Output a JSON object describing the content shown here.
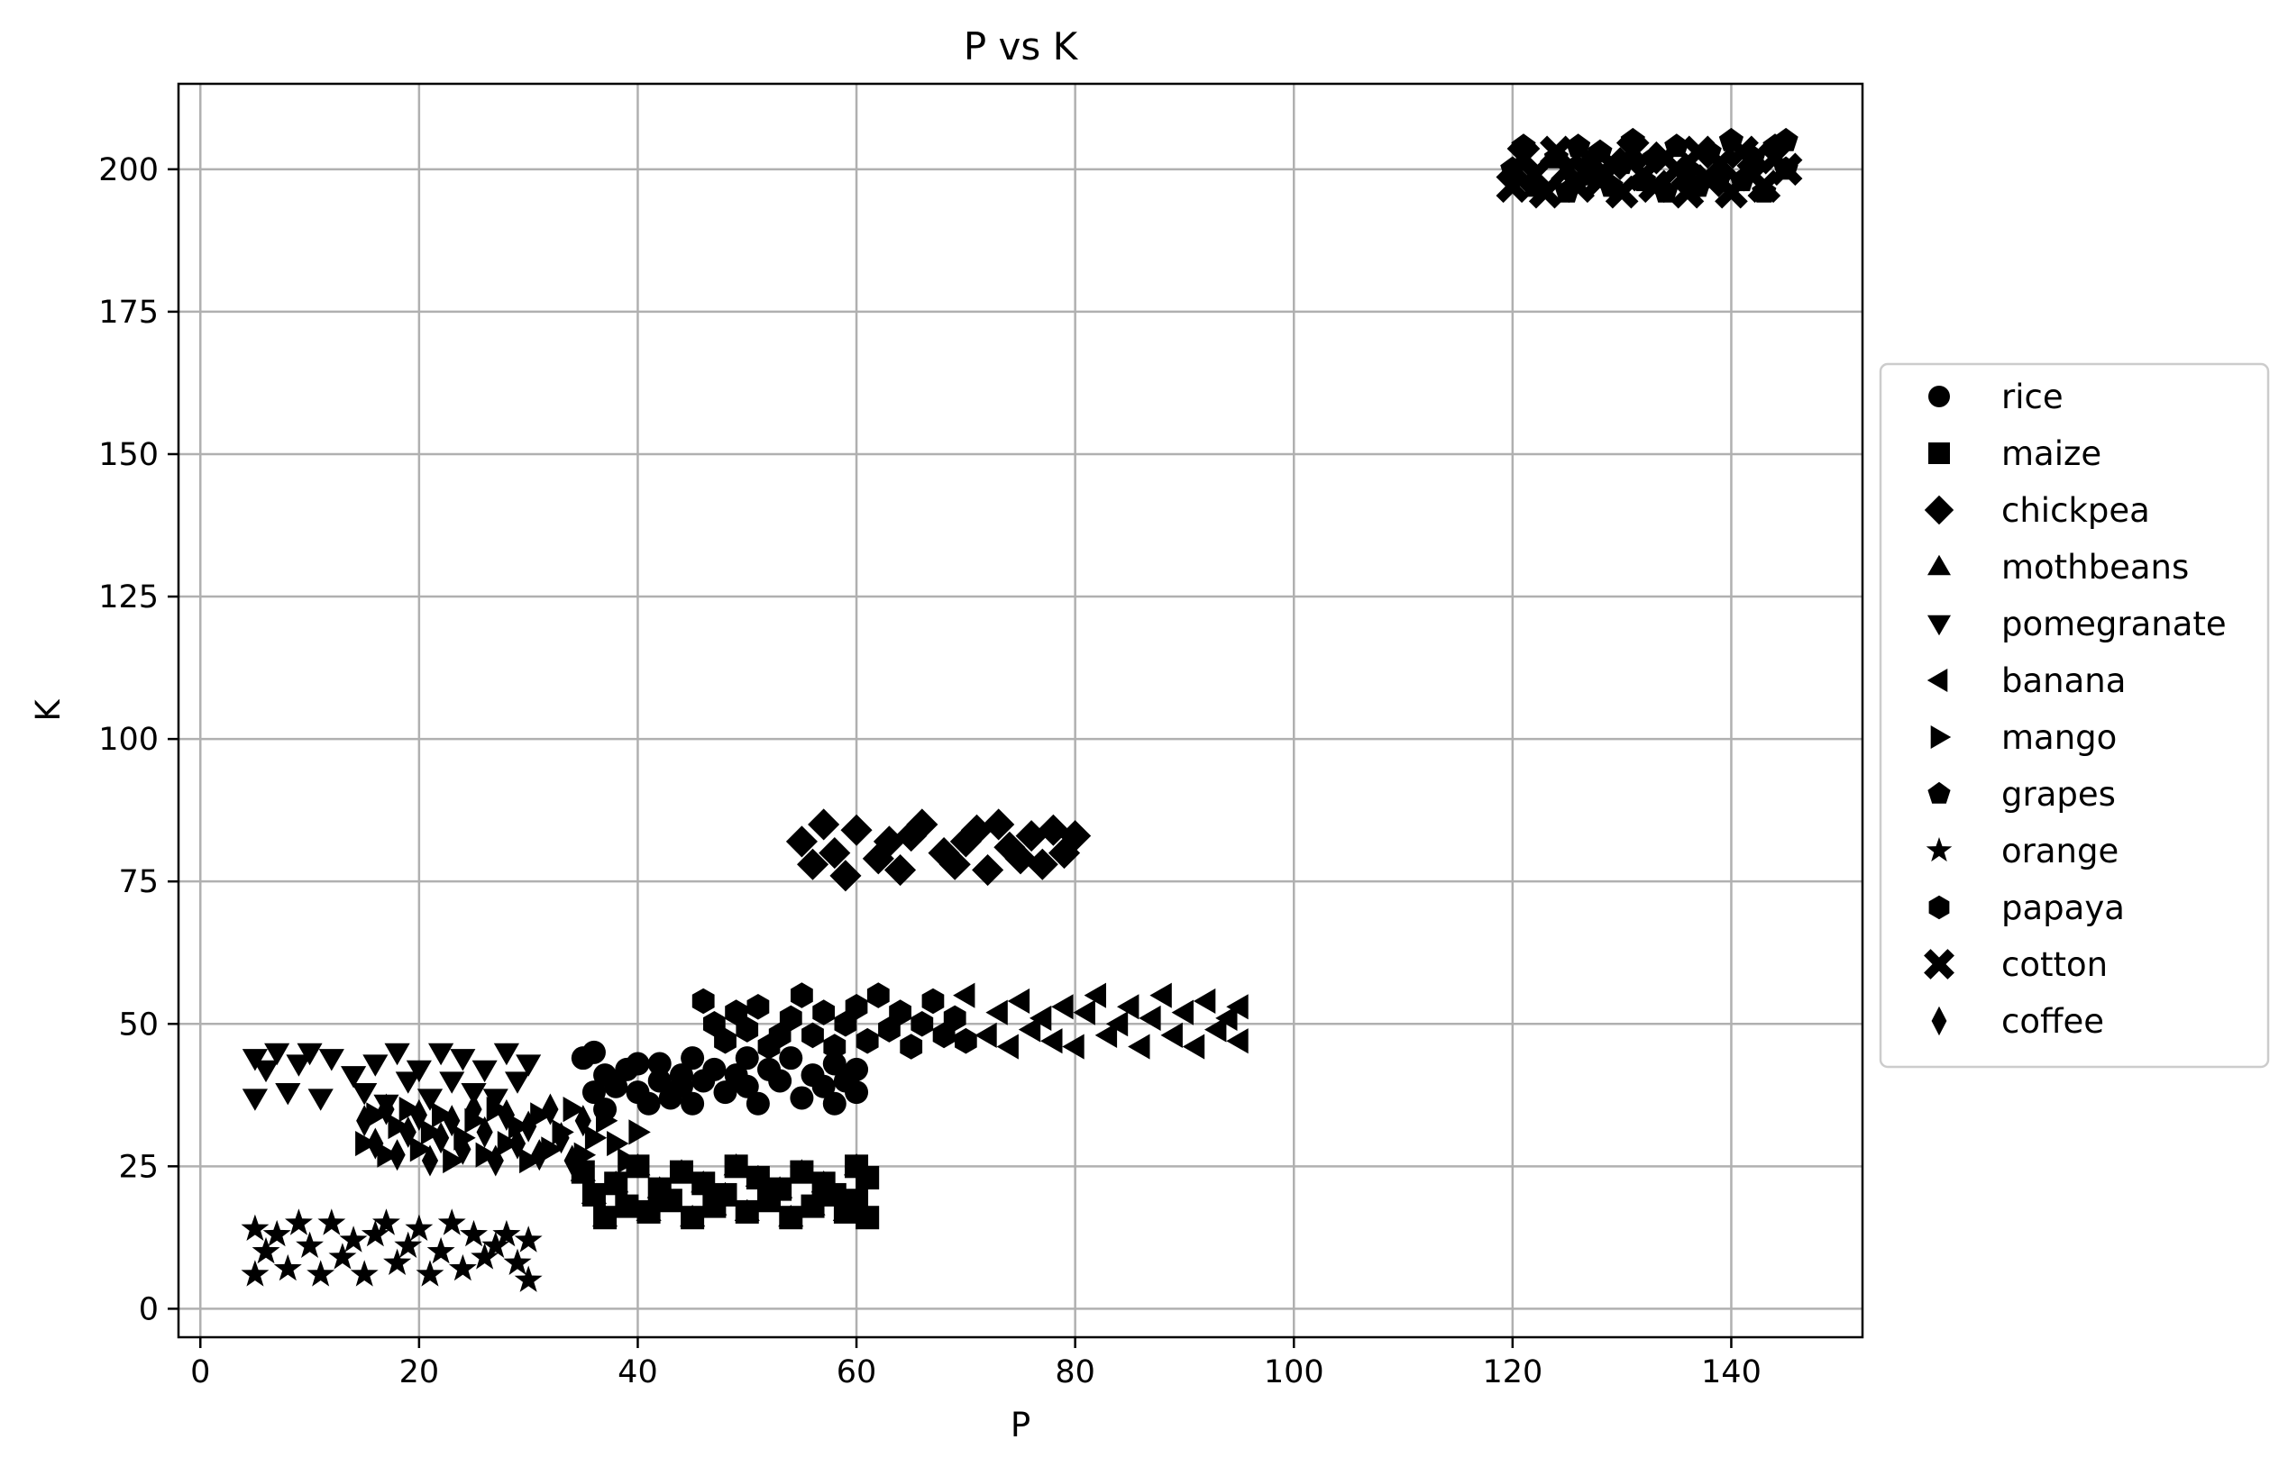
{
  "chart_data": {
    "type": "scatter",
    "title": "P vs K",
    "xlabel": "P",
    "ylabel": "K",
    "xlim": [
      -2,
      152
    ],
    "ylim": [
      -5,
      215
    ],
    "xticks": [
      0,
      20,
      40,
      60,
      80,
      100,
      120,
      140
    ],
    "yticks": [
      0,
      25,
      50,
      75,
      100,
      125,
      150,
      175,
      200
    ],
    "grid": true,
    "legend": "center-right-outside",
    "marker_color": "#000000",
    "series": [
      {
        "name": "rice",
        "marker": "circle",
        "points": [
          [
            35,
            44
          ],
          [
            36,
            45
          ],
          [
            37,
            41
          ],
          [
            36,
            38
          ],
          [
            37,
            35
          ],
          [
            38,
            39
          ],
          [
            39,
            42
          ],
          [
            40,
            43
          ],
          [
            40,
            38
          ],
          [
            41,
            36
          ],
          [
            42,
            40
          ],
          [
            42,
            43
          ],
          [
            43,
            37
          ],
          [
            44,
            41
          ],
          [
            44,
            39
          ],
          [
            45,
            44
          ],
          [
            45,
            36
          ],
          [
            46,
            40
          ],
          [
            47,
            42
          ],
          [
            48,
            38
          ],
          [
            49,
            41
          ],
          [
            50,
            44
          ],
          [
            50,
            39
          ],
          [
            51,
            36
          ],
          [
            52,
            42
          ],
          [
            53,
            40
          ],
          [
            54,
            44
          ],
          [
            55,
            37
          ],
          [
            56,
            41
          ],
          [
            57,
            39
          ],
          [
            58,
            43
          ],
          [
            58,
            36
          ],
          [
            59,
            40
          ],
          [
            60,
            38
          ],
          [
            60,
            42
          ]
        ]
      },
      {
        "name": "maize",
        "marker": "square",
        "points": [
          [
            35,
            24
          ],
          [
            36,
            20
          ],
          [
            37,
            16
          ],
          [
            38,
            22
          ],
          [
            39,
            18
          ],
          [
            40,
            25
          ],
          [
            41,
            17
          ],
          [
            42,
            21
          ],
          [
            43,
            19
          ],
          [
            44,
            24
          ],
          [
            45,
            16
          ],
          [
            46,
            22
          ],
          [
            47,
            18
          ],
          [
            48,
            20
          ],
          [
            49,
            25
          ],
          [
            50,
            17
          ],
          [
            51,
            23
          ],
          [
            52,
            19
          ],
          [
            53,
            21
          ],
          [
            54,
            16
          ],
          [
            55,
            24
          ],
          [
            56,
            18
          ],
          [
            57,
            22
          ],
          [
            58,
            20
          ],
          [
            59,
            17
          ],
          [
            60,
            25
          ],
          [
            60,
            19
          ],
          [
            61,
            23
          ],
          [
            61,
            16
          ]
        ]
      },
      {
        "name": "chickpea",
        "marker": "diamond",
        "points": [
          [
            55,
            82
          ],
          [
            56,
            78
          ],
          [
            57,
            85
          ],
          [
            58,
            80
          ],
          [
            59,
            76
          ],
          [
            60,
            84
          ],
          [
            62,
            79
          ],
          [
            63,
            82
          ],
          [
            64,
            77
          ],
          [
            65,
            83
          ],
          [
            66,
            85
          ],
          [
            68,
            80
          ],
          [
            69,
            78
          ],
          [
            70,
            82
          ],
          [
            71,
            84
          ],
          [
            72,
            77
          ],
          [
            73,
            85
          ],
          [
            74,
            81
          ],
          [
            75,
            79
          ],
          [
            76,
            83
          ],
          [
            77,
            78
          ],
          [
            78,
            84
          ],
          [
            79,
            80
          ],
          [
            80,
            83
          ]
        ]
      },
      {
        "name": "mothbeans",
        "marker": "triangle-up",
        "points": [
          [
            35,
            24
          ],
          [
            36,
            20
          ],
          [
            37,
            16
          ],
          [
            38,
            22
          ],
          [
            39,
            18
          ],
          [
            40,
            25
          ],
          [
            41,
            17
          ],
          [
            42,
            21
          ],
          [
            43,
            19
          ],
          [
            44,
            24
          ],
          [
            45,
            16
          ],
          [
            46,
            22
          ],
          [
            47,
            18
          ],
          [
            48,
            20
          ],
          [
            49,
            25
          ],
          [
            50,
            17
          ],
          [
            51,
            23
          ],
          [
            52,
            19
          ],
          [
            53,
            21
          ],
          [
            54,
            16
          ],
          [
            55,
            24
          ],
          [
            56,
            18
          ],
          [
            57,
            22
          ],
          [
            58,
            20
          ],
          [
            59,
            17
          ],
          [
            60,
            25
          ]
        ]
      },
      {
        "name": "pomegranate",
        "marker": "triangle-down",
        "points": [
          [
            5,
            44
          ],
          [
            5,
            37
          ],
          [
            6,
            42
          ],
          [
            7,
            45
          ],
          [
            8,
            38
          ],
          [
            9,
            43
          ],
          [
            10,
            45
          ],
          [
            11,
            37
          ],
          [
            12,
            44
          ],
          [
            14,
            41
          ],
          [
            15,
            38
          ],
          [
            16,
            43
          ],
          [
            17,
            36
          ],
          [
            18,
            45
          ],
          [
            19,
            40
          ],
          [
            20,
            42
          ],
          [
            21,
            37
          ],
          [
            22,
            45
          ],
          [
            23,
            40
          ],
          [
            24,
            44
          ],
          [
            25,
            38
          ],
          [
            26,
            42
          ],
          [
            27,
            37
          ],
          [
            28,
            45
          ],
          [
            29,
            40
          ],
          [
            30,
            43
          ]
        ]
      },
      {
        "name": "banana",
        "marker": "triangle-left",
        "points": [
          [
            70,
            55
          ],
          [
            72,
            48
          ],
          [
            73,
            52
          ],
          [
            74,
            46
          ],
          [
            75,
            54
          ],
          [
            76,
            49
          ],
          [
            77,
            51
          ],
          [
            78,
            47
          ],
          [
            79,
            53
          ],
          [
            80,
            46
          ],
          [
            81,
            52
          ],
          [
            82,
            55
          ],
          [
            83,
            48
          ],
          [
            84,
            50
          ],
          [
            85,
            53
          ],
          [
            86,
            46
          ],
          [
            87,
            51
          ],
          [
            88,
            55
          ],
          [
            89,
            48
          ],
          [
            90,
            52
          ],
          [
            91,
            46
          ],
          [
            92,
            54
          ],
          [
            93,
            49
          ],
          [
            94,
            51
          ],
          [
            95,
            47
          ],
          [
            95,
            53
          ]
        ]
      },
      {
        "name": "mango",
        "marker": "triangle-right",
        "points": [
          [
            15,
            29
          ],
          [
            16,
            34
          ],
          [
            17,
            27
          ],
          [
            18,
            32
          ],
          [
            19,
            35
          ],
          [
            20,
            28
          ],
          [
            21,
            31
          ],
          [
            22,
            34
          ],
          [
            23,
            26
          ],
          [
            24,
            30
          ],
          [
            25,
            33
          ],
          [
            26,
            27
          ],
          [
            27,
            35
          ],
          [
            28,
            29
          ],
          [
            29,
            32
          ],
          [
            30,
            26
          ],
          [
            31,
            34
          ],
          [
            32,
            28
          ],
          [
            33,
            31
          ],
          [
            34,
            35
          ],
          [
            35,
            27
          ],
          [
            36,
            30
          ],
          [
            37,
            33
          ],
          [
            38,
            29
          ],
          [
            39,
            26
          ],
          [
            40,
            31
          ]
        ]
      },
      {
        "name": "grapes",
        "marker": "pentagon",
        "points": [
          [
            120,
            200
          ],
          [
            121,
            204
          ],
          [
            122,
            197
          ],
          [
            124,
            202
          ],
          [
            125,
            196
          ],
          [
            126,
            204
          ],
          [
            127,
            199
          ],
          [
            128,
            203
          ],
          [
            129,
            197
          ],
          [
            130,
            201
          ],
          [
            131,
            205
          ],
          [
            132,
            198
          ],
          [
            133,
            202
          ],
          [
            134,
            196
          ],
          [
            135,
            204
          ],
          [
            136,
            200
          ],
          [
            137,
            197
          ],
          [
            138,
            203
          ],
          [
            139,
            199
          ],
          [
            140,
            205
          ],
          [
            141,
            198
          ],
          [
            142,
            202
          ],
          [
            143,
            196
          ],
          [
            144,
            204
          ],
          [
            145,
            200
          ],
          [
            145,
            205
          ]
        ]
      },
      {
        "name": "orange",
        "marker": "star",
        "points": [
          [
            5,
            14
          ],
          [
            5,
            6
          ],
          [
            6,
            10
          ],
          [
            7,
            13
          ],
          [
            8,
            7
          ],
          [
            9,
            15
          ],
          [
            10,
            11
          ],
          [
            11,
            6
          ],
          [
            12,
            15
          ],
          [
            13,
            9
          ],
          [
            14,
            12
          ],
          [
            15,
            6
          ],
          [
            16,
            13
          ],
          [
            17,
            15
          ],
          [
            18,
            8
          ],
          [
            19,
            11
          ],
          [
            20,
            14
          ],
          [
            21,
            6
          ],
          [
            22,
            10
          ],
          [
            23,
            15
          ],
          [
            24,
            7
          ],
          [
            25,
            13
          ],
          [
            26,
            9
          ],
          [
            27,
            11
          ],
          [
            28,
            13
          ],
          [
            29,
            8
          ],
          [
            30,
            12
          ],
          [
            30,
            5
          ]
        ]
      },
      {
        "name": "papaya",
        "marker": "hexagon",
        "points": [
          [
            46,
            54
          ],
          [
            47,
            50
          ],
          [
            48,
            47
          ],
          [
            49,
            52
          ],
          [
            50,
            49
          ],
          [
            51,
            53
          ],
          [
            52,
            46
          ],
          [
            53,
            48
          ],
          [
            54,
            51
          ],
          [
            55,
            55
          ],
          [
            56,
            48
          ],
          [
            57,
            52
          ],
          [
            58,
            46
          ],
          [
            59,
            50
          ],
          [
            60,
            53
          ],
          [
            61,
            47
          ],
          [
            62,
            55
          ],
          [
            63,
            49
          ],
          [
            64,
            52
          ],
          [
            65,
            46
          ],
          [
            66,
            50
          ],
          [
            67,
            54
          ],
          [
            68,
            48
          ],
          [
            69,
            51
          ],
          [
            70,
            47
          ]
        ]
      },
      {
        "name": "cotton",
        "marker": "x-filled",
        "points": [
          [
            120,
            197
          ],
          [
            121,
            202
          ],
          [
            122,
            199
          ],
          [
            123,
            196
          ],
          [
            124,
            203
          ],
          [
            125,
            200
          ],
          [
            126,
            197
          ],
          [
            127,
            202
          ],
          [
            128,
            198
          ],
          [
            129,
            201
          ],
          [
            130,
            196
          ],
          [
            131,
            203
          ],
          [
            132,
            199
          ],
          [
            133,
            197
          ],
          [
            134,
            202
          ],
          [
            135,
            200
          ],
          [
            136,
            196
          ],
          [
            137,
            203
          ],
          [
            138,
            198
          ],
          [
            139,
            201
          ],
          [
            140,
            196
          ],
          [
            141,
            203
          ],
          [
            142,
            199
          ],
          [
            143,
            197
          ],
          [
            144,
            202
          ],
          [
            145,
            200
          ]
        ]
      },
      {
        "name": "coffee",
        "marker": "thin-diamond",
        "points": [
          [
            15,
            33
          ],
          [
            16,
            29
          ],
          [
            17,
            35
          ],
          [
            18,
            27
          ],
          [
            19,
            31
          ],
          [
            20,
            34
          ],
          [
            21,
            26
          ],
          [
            22,
            30
          ],
          [
            23,
            33
          ],
          [
            24,
            28
          ],
          [
            25,
            35
          ],
          [
            26,
            31
          ],
          [
            27,
            26
          ],
          [
            28,
            34
          ],
          [
            29,
            29
          ],
          [
            30,
            32
          ],
          [
            31,
            27
          ],
          [
            32,
            35
          ],
          [
            33,
            30
          ],
          [
            34,
            26
          ],
          [
            35,
            33
          ]
        ]
      }
    ]
  }
}
